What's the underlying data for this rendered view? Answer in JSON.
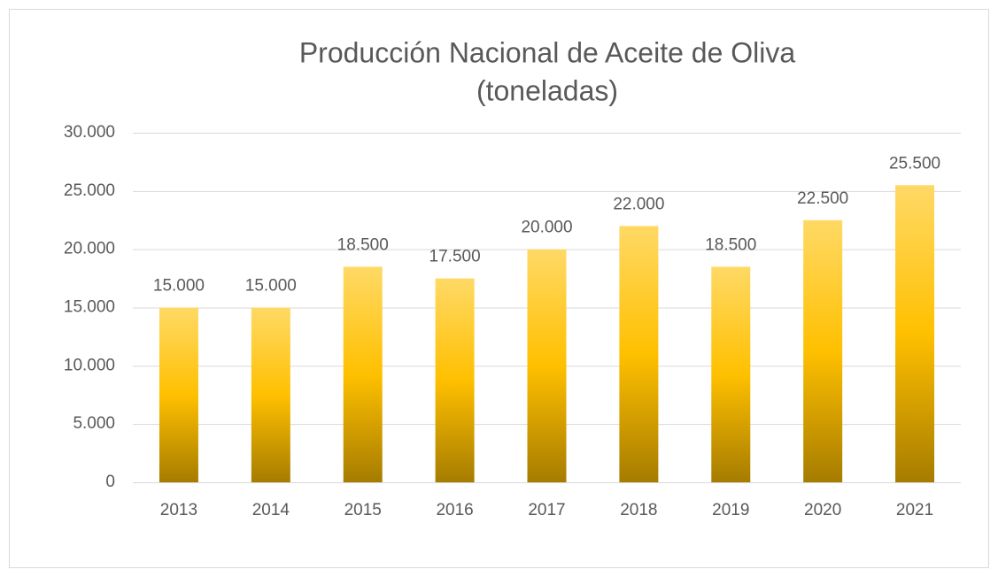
{
  "chart_data": {
    "type": "bar",
    "title": "Producción Nacional de Aceite de Oliva",
    "subtitle": "(toneladas)",
    "categories": [
      "2013",
      "2014",
      "2015",
      "2016",
      "2017",
      "2018",
      "2019",
      "2020",
      "2021"
    ],
    "values": [
      15000,
      15000,
      18500,
      17500,
      20000,
      22000,
      18500,
      22500,
      25500
    ],
    "value_labels": [
      "15.000",
      "15.000",
      "18.500",
      "17.500",
      "20.000",
      "22.000",
      "18.500",
      "22.500",
      "25.500"
    ],
    "color": "#ffc000",
    "ylim": [
      0,
      30000
    ],
    "yticks": [
      0,
      {
        "value": 5000,
        "label": "5.000"
      },
      {
        "value": 10000,
        "label": "10.000"
      },
      {
        "value": 15000,
        "label": "15.000"
      },
      {
        "value": 20000,
        "label": "20.000"
      },
      {
        "value": 25000,
        "label": "25.000"
      },
      {
        "value": 30000,
        "label": "30.000"
      }
    ],
    "grid": true
  }
}
